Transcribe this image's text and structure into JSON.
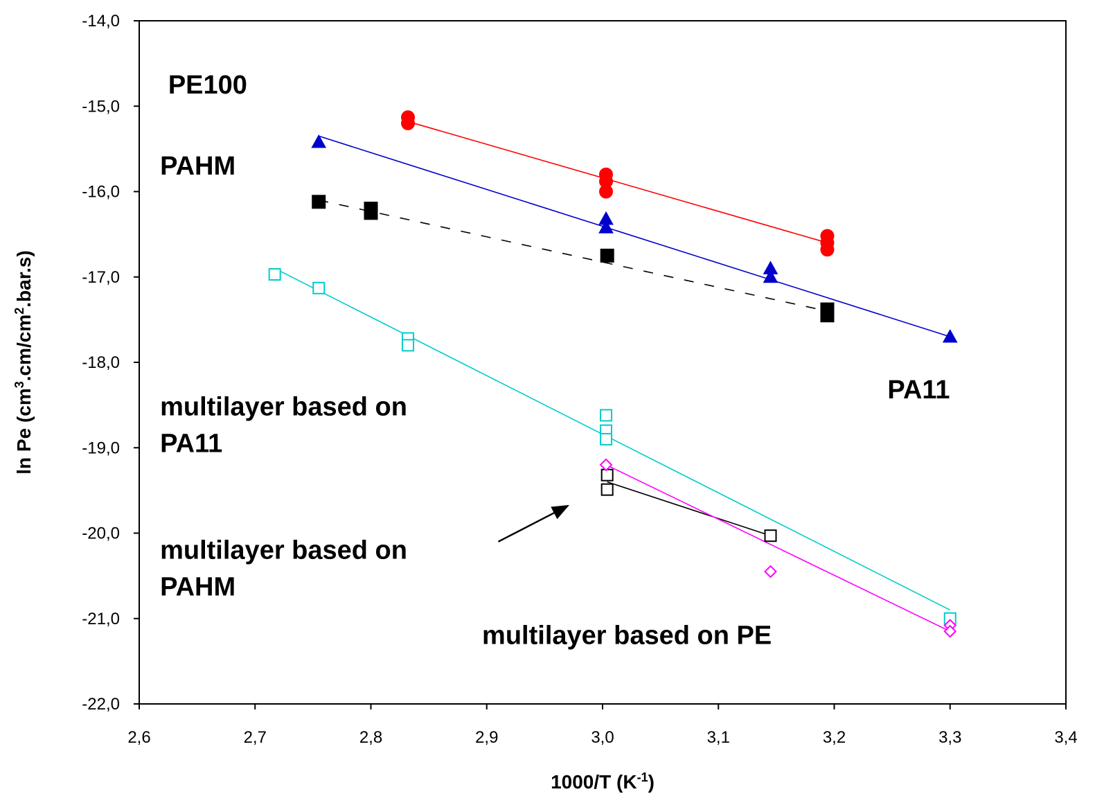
{
  "chart_data": {
    "type": "scatter",
    "xlabel": {
      "base": "1000/T (K",
      "sup": "-1",
      "tail": ")"
    },
    "ylabel": {
      "p1": "ln Pe (cm",
      "s1": "3",
      "p2": ".cm/cm",
      "s2": "2",
      "p3": ".bar.s)"
    },
    "xlim": [
      2.6,
      3.4
    ],
    "ylim": [
      -22.0,
      -14.0
    ],
    "x_ticks": [
      {
        "v": 2.6,
        "label": "2,6"
      },
      {
        "v": 2.7,
        "label": "2,7"
      },
      {
        "v": 2.8,
        "label": "2,8"
      },
      {
        "v": 2.9,
        "label": "2,9"
      },
      {
        "v": 3.0,
        "label": "3,0"
      },
      {
        "v": 3.1,
        "label": "3,1"
      },
      {
        "v": 3.2,
        "label": "3,2"
      },
      {
        "v": 3.3,
        "label": "3,3"
      },
      {
        "v": 3.4,
        "label": "3,4"
      }
    ],
    "y_ticks": [
      {
        "v": -14,
        "label": "-14,0"
      },
      {
        "v": -15,
        "label": "-15,0"
      },
      {
        "v": -16,
        "label": "-16,0"
      },
      {
        "v": -17,
        "label": "-17,0"
      },
      {
        "v": -18,
        "label": "-18,0"
      },
      {
        "v": -19,
        "label": "-19,0"
      },
      {
        "v": -20,
        "label": "-20,0"
      },
      {
        "v": -21,
        "label": "-21,0"
      },
      {
        "v": -22,
        "label": "-22,0"
      }
    ],
    "grid": false,
    "series": [
      {
        "name": "PE100",
        "marker": "circle",
        "filled": true,
        "color": "#ff0000",
        "points": [
          [
            2.832,
            -15.13
          ],
          [
            2.832,
            -15.2
          ],
          [
            3.003,
            -15.8
          ],
          [
            3.003,
            -15.88
          ],
          [
            3.003,
            -16.0
          ],
          [
            3.194,
            -16.52
          ],
          [
            3.194,
            -16.6
          ],
          [
            3.194,
            -16.68
          ]
        ],
        "fit": {
          "style": "solid",
          "x": [
            2.832,
            3.194
          ],
          "y": [
            -15.18,
            -16.6
          ]
        }
      },
      {
        "name": "PAHM",
        "marker": "square",
        "filled": true,
        "color": "#000000",
        "points": [
          [
            2.755,
            -16.12
          ],
          [
            2.8,
            -16.2
          ],
          [
            2.8,
            -16.25
          ],
          [
            3.004,
            -16.75
          ],
          [
            3.194,
            -17.38
          ],
          [
            3.194,
            -17.45
          ]
        ],
        "fit": {
          "style": "dashed",
          "x": [
            2.755,
            3.194
          ],
          "y": [
            -16.1,
            -17.4
          ]
        }
      },
      {
        "name": "PA11",
        "marker": "triangle",
        "filled": true,
        "color": "#0000cc",
        "points": [
          [
            2.755,
            -15.42
          ],
          [
            3.003,
            -16.32
          ],
          [
            3.003,
            -16.42
          ],
          [
            3.145,
            -16.9
          ],
          [
            3.145,
            -17.0
          ],
          [
            3.3,
            -17.7
          ]
        ],
        "fit": {
          "style": "solid",
          "x": [
            2.755,
            3.3
          ],
          "y": [
            -15.35,
            -17.7
          ]
        }
      },
      {
        "name": "multilayer based on PA11",
        "marker": "square",
        "filled": false,
        "color": "#00cccc",
        "points": [
          [
            2.717,
            -16.97
          ],
          [
            2.755,
            -17.13
          ],
          [
            2.832,
            -17.72
          ],
          [
            2.832,
            -17.8
          ],
          [
            3.003,
            -18.62
          ],
          [
            3.003,
            -18.8
          ],
          [
            3.003,
            -18.9
          ],
          [
            3.3,
            -21.0
          ]
        ],
        "fit": {
          "style": "solid",
          "x": [
            2.717,
            3.3
          ],
          "y": [
            -16.9,
            -20.9
          ]
        }
      },
      {
        "name": "multilayer based on PAHM",
        "marker": "square",
        "filled": false,
        "color": "#000000",
        "points": [
          [
            3.004,
            -19.32
          ],
          [
            3.004,
            -19.49
          ],
          [
            3.145,
            -20.03
          ]
        ],
        "fit": {
          "style": "solid",
          "x": [
            3.004,
            3.145
          ],
          "y": [
            -19.4,
            -20.03
          ]
        }
      },
      {
        "name": "multilayer based on PE",
        "marker": "diamond",
        "filled": false,
        "color": "#ff00ff",
        "points": [
          [
            3.003,
            -19.2
          ],
          [
            3.145,
            -20.45
          ],
          [
            3.3,
            -21.08
          ],
          [
            3.3,
            -21.15
          ]
        ],
        "fit": {
          "style": "solid",
          "x": [
            3.003,
            3.3
          ],
          "y": [
            -19.2,
            -21.15
          ]
        }
      }
    ],
    "annotations": [
      {
        "lines": [
          "PE100"
        ],
        "at": [
          2.625,
          -14.85
        ]
      },
      {
        "lines": [
          "PAHM"
        ],
        "at": [
          2.618,
          -15.8
        ]
      },
      {
        "lines": [
          "PA11"
        ],
        "at": [
          3.246,
          -18.42
        ]
      },
      {
        "lines": [
          "multilayer based on",
          "PA11"
        ],
        "at": [
          2.618,
          -18.62
        ]
      },
      {
        "lines": [
          "multilayer based on",
          "PAHM"
        ],
        "at": [
          2.618,
          -20.3
        ]
      },
      {
        "lines": [
          "multilayer based on PE"
        ],
        "at": [
          2.896,
          -21.3
        ]
      }
    ],
    "arrow": {
      "from": [
        2.91,
        -20.1
      ],
      "to": [
        2.97,
        -19.68
      ]
    }
  }
}
